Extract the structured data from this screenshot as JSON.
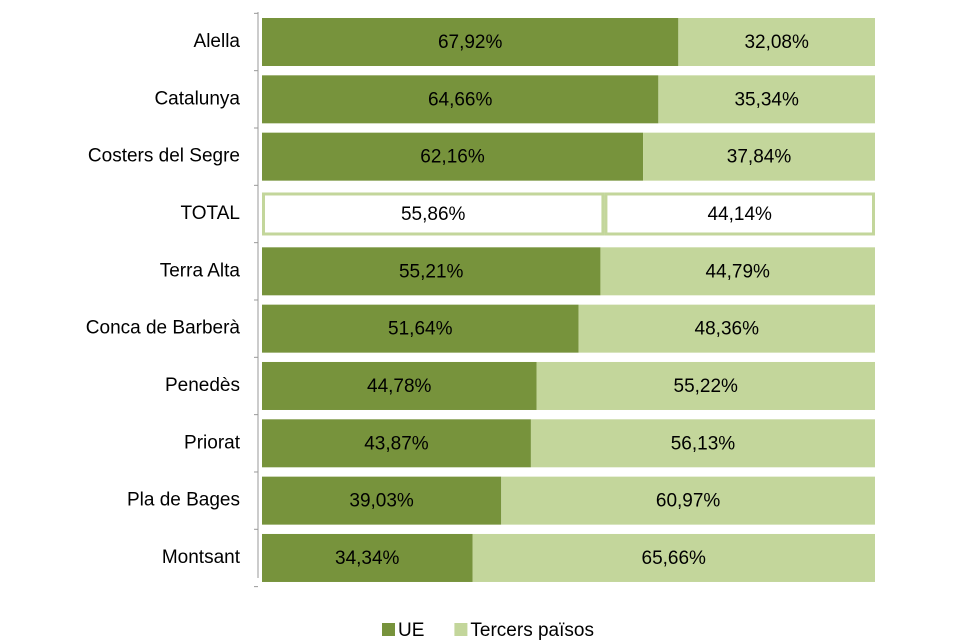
{
  "chart_data": {
    "type": "stacked_barh",
    "categories": [
      "Alella",
      "Catalunya",
      "Costers del Segre",
      "TOTAL",
      "Terra Alta",
      "Conca de Barberà",
      "Penedès",
      "Priorat",
      "Pla de Bages",
      "Montsant"
    ],
    "series": [
      {
        "name": "UE",
        "color": "#77933c",
        "values": [
          67.92,
          64.66,
          62.16,
          55.86,
          55.21,
          51.64,
          44.78,
          43.87,
          39.03,
          34.34
        ],
        "value_labels": [
          "67,92%",
          "64,66%",
          "62,16%",
          "55,86%",
          "55,21%",
          "51,64%",
          "44,78%",
          "43,87%",
          "39,03%",
          "34,34%"
        ]
      },
      {
        "name": "Tercers països",
        "color": "#c3d69b",
        "values": [
          32.08,
          35.34,
          37.84,
          44.14,
          44.79,
          48.36,
          55.22,
          56.13,
          60.97,
          65.66
        ],
        "value_labels": [
          "32,08%",
          "35,34%",
          "37,84%",
          "44,14%",
          "44,79%",
          "48,36%",
          "55,22%",
          "56,13%",
          "60,97%",
          "65,66%"
        ]
      }
    ],
    "xlim": [
      0,
      100
    ],
    "highlight_index": 3,
    "legend": "bottom"
  }
}
